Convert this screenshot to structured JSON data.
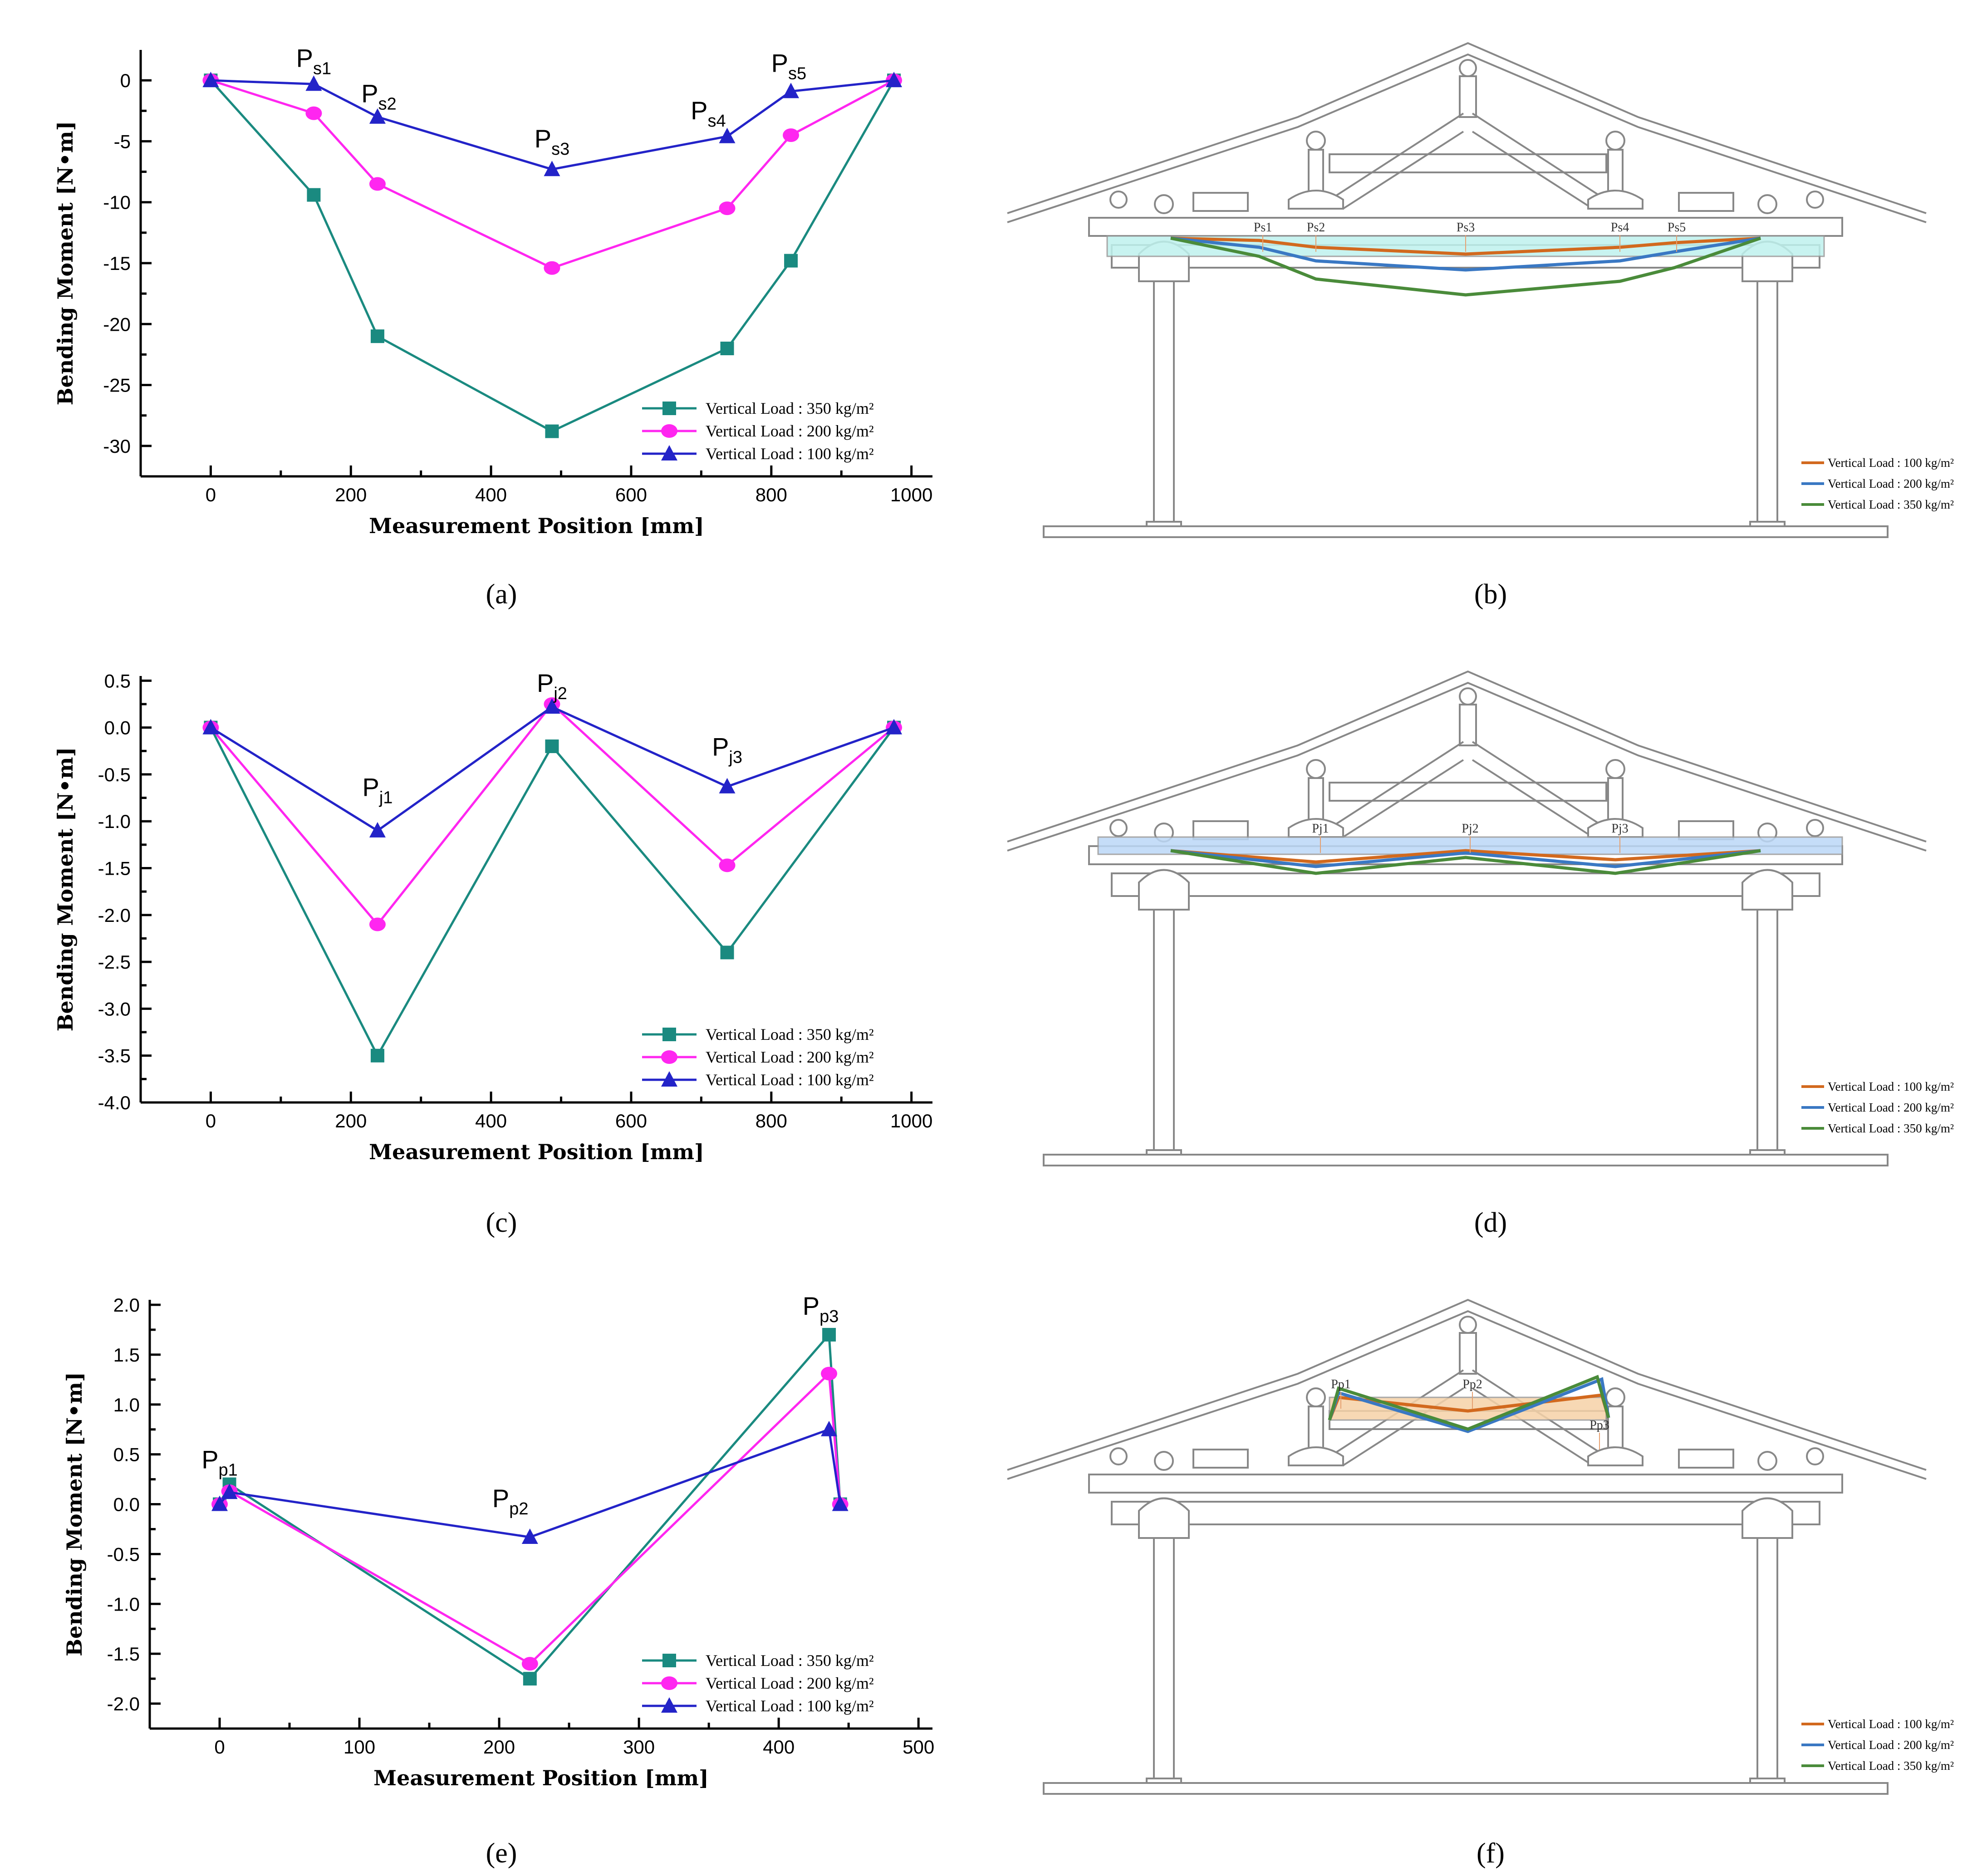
{
  "colors": {
    "s350": "#1a8a80",
    "s200": "#ff26f0",
    "s100": "#2323c8",
    "d100": "#d2691e",
    "d200": "#3a78c3",
    "d350": "#4a8b3a",
    "band_b": "#bff2ee",
    "band_d": "#bcd8f7",
    "band_f": "#f6d2a8"
  },
  "captions": {
    "a": "(a)",
    "b": "(b)",
    "c": "(c)",
    "d": "(d)",
    "e": "(e)",
    "f": "(f)"
  },
  "chart_data": [
    {
      "id": "a",
      "type": "line",
      "xlabel": "Measurement Position [mm]",
      "ylabel": "Bending Moment [N•m]",
      "xlim": [
        -100,
        1030
      ],
      "ylim": [
        -32.5,
        2.5
      ],
      "xticks": [
        0,
        200,
        400,
        600,
        800,
        1000
      ],
      "yticks": [
        0,
        -5,
        -10,
        -15,
        -20,
        -25,
        -30
      ],
      "xticklabels": [
        "0",
        "200",
        "400",
        "600",
        "800",
        "1000"
      ],
      "yticklabels": [
        "0",
        "-5",
        "-10",
        "-15",
        "-20",
        "-25",
        "-30"
      ],
      "x": [
        0,
        147,
        238,
        487,
        737,
        828,
        975
      ],
      "series": [
        {
          "name": "Vertical Load : 350 kg/m²",
          "marker": "square",
          "color_key": "s350",
          "values": [
            0,
            -9.4,
            -21.0,
            -28.8,
            -22.0,
            -14.8,
            0
          ]
        },
        {
          "name": "Vertical Load : 200 kg/m²",
          "marker": "circle",
          "color_key": "s200",
          "values": [
            0,
            -2.7,
            -8.5,
            -15.4,
            -10.5,
            -4.5,
            0
          ]
        },
        {
          "name": "Vertical Load : 100 kg/m²",
          "marker": "triangle",
          "color_key": "s100",
          "values": [
            0,
            -0.3,
            -3.0,
            -7.3,
            -4.6,
            -0.9,
            0
          ]
        }
      ],
      "point_labels": [
        {
          "main": "P",
          "sub": "s1",
          "x": 147,
          "y": 1.1
        },
        {
          "main": "P",
          "sub": "s2",
          "x": 240,
          "y": -1.8
        },
        {
          "main": "P",
          "sub": "s3",
          "x": 487,
          "y": -5.5
        },
        {
          "main": "P",
          "sub": "s4",
          "x": 710,
          "y": -3.2
        },
        {
          "main": "P",
          "sub": "s5",
          "x": 825,
          "y": 0.7
        }
      ]
    },
    {
      "id": "c",
      "type": "line",
      "xlabel": "Measurement Position [mm]",
      "ylabel": "Bending Moment [N•m]",
      "xlim": [
        -100,
        1030
      ],
      "ylim": [
        -4.0,
        0.55
      ],
      "xticks": [
        0,
        200,
        400,
        600,
        800,
        1000
      ],
      "yticks": [
        0.5,
        0.0,
        -0.5,
        -1.0,
        -1.5,
        -2.0,
        -2.5,
        -3.0,
        -3.5,
        -4.0
      ],
      "xticklabels": [
        "0",
        "200",
        "400",
        "600",
        "800",
        "1000"
      ],
      "yticklabels": [
        "0.5",
        "0.0",
        "-0.5",
        "-1.0",
        "-1.5",
        "-2.0",
        "-2.5",
        "-3.0",
        "-3.5",
        "-4.0"
      ],
      "x": [
        0,
        238,
        487,
        737,
        975
      ],
      "series": [
        {
          "name": "Vertical Load : 350 kg/m²",
          "marker": "square",
          "color_key": "s350",
          "values": [
            0,
            -3.5,
            -0.2,
            -2.4,
            0
          ]
        },
        {
          "name": "Vertical Load : 200 kg/m²",
          "marker": "circle",
          "color_key": "s200",
          "values": [
            0,
            -2.1,
            0.25,
            -1.47,
            0
          ]
        },
        {
          "name": "Vertical Load : 100 kg/m²",
          "marker": "triangle",
          "color_key": "s100",
          "values": [
            0,
            -1.1,
            0.22,
            -0.63,
            0
          ]
        }
      ],
      "point_labels": [
        {
          "main": "P",
          "sub": "j1",
          "x": 238,
          "y": -0.73
        },
        {
          "main": "P",
          "sub": "j2",
          "x": 487,
          "y": 0.38
        },
        {
          "main": "P",
          "sub": "j3",
          "x": 737,
          "y": -0.3
        }
      ]
    },
    {
      "id": "e",
      "type": "line",
      "xlabel": "Measurement Position [mm]",
      "ylabel": "Bending Moment [N•m]",
      "xlim": [
        -50,
        510
      ],
      "ylim": [
        -2.25,
        2.05
      ],
      "xticks": [
        0,
        100,
        200,
        300,
        400,
        500
      ],
      "yticks": [
        2.0,
        1.5,
        1.0,
        0.5,
        0.0,
        -0.5,
        -1.0,
        -1.5,
        -2.0
      ],
      "xticklabels": [
        "0",
        "100",
        "200",
        "300",
        "400",
        "500"
      ],
      "yticklabels": [
        "2.0",
        "1.5",
        "1.0",
        "0.5",
        "0.0",
        "-0.5",
        "-1.0",
        "-1.5",
        "-2.0"
      ],
      "x": [
        0,
        7,
        222,
        436,
        444
      ],
      "series": [
        {
          "name": "Vertical Load : 350 kg/m²",
          "marker": "square",
          "color_key": "s350",
          "values": [
            0,
            0.2,
            -1.75,
            1.7,
            0
          ]
        },
        {
          "name": "Vertical Load : 200 kg/m²",
          "marker": "circle",
          "color_key": "s200",
          "values": [
            0,
            0.13,
            -1.6,
            1.31,
            0
          ]
        },
        {
          "name": "Vertical Load : 100 kg/m²",
          "marker": "triangle",
          "color_key": "s100",
          "values": [
            0,
            0.12,
            -0.33,
            0.75,
            0
          ]
        }
      ],
      "point_labels": [
        {
          "main": "P",
          "sub": "p1",
          "x": 0,
          "y": 0.36
        },
        {
          "main": "P",
          "sub": "p2",
          "x": 208,
          "y": -0.03
        },
        {
          "main": "P",
          "sub": "p3",
          "x": 430,
          "y": 1.9
        }
      ]
    }
  ],
  "diagram_legends": {
    "b": [
      "Vertical Load : 100 kg/m²",
      "Vertical Load : 200 kg/m²",
      "Vertical Load : 350 kg/m²"
    ],
    "d": [
      "Vertical Load : 100 kg/m²",
      "Vertical Load : 200 kg/m²",
      "Vertical Load : 350 kg/m²"
    ],
    "f": [
      "Vertical Load : 100 kg/m²",
      "Vertical Load : 200 kg/m²",
      "Vertical Load : 350 kg/m²"
    ]
  },
  "diagram_point_labels": {
    "b": [
      "Ps1",
      "Ps2",
      "Ps3",
      "Ps4",
      "Ps5"
    ],
    "d": [
      "Pj1",
      "Pj2",
      "Pj3"
    ],
    "f": [
      "Pp1",
      "Pp2",
      "Pp3"
    ]
  }
}
